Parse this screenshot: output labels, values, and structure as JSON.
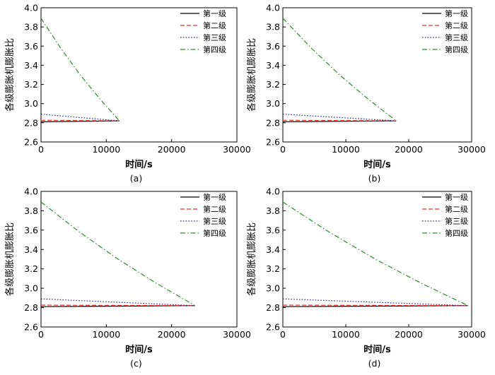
{
  "chart_data": [
    {
      "type": "line",
      "panel_label": "(a)",
      "xlabel": "时间/s",
      "ylabel": "各级膨胀机膨胀比",
      "xlim": [
        0,
        30000
      ],
      "ylim": [
        2.6,
        4.0
      ],
      "xticks": [
        0,
        10000,
        20000,
        30000
      ],
      "yticks": [
        2.6,
        2.8,
        3.0,
        3.2,
        3.4,
        3.6,
        3.8,
        4.0
      ],
      "series": [
        {
          "name": "第一级",
          "style": "solid",
          "color": "#000000",
          "x": [
            0,
            6000,
            12000
          ],
          "y": [
            2.81,
            2.815,
            2.82
          ]
        },
        {
          "name": "第二级",
          "style": "dashed",
          "color": "#e8352a",
          "x": [
            0,
            6000,
            12000
          ],
          "y": [
            2.826,
            2.823,
            2.82
          ]
        },
        {
          "name": "第三级",
          "style": "dotted",
          "color": "#2b2b8c",
          "x": [
            0,
            6000,
            12000
          ],
          "y": [
            2.89,
            2.855,
            2.82
          ]
        },
        {
          "name": "第四级",
          "style": "dashdot",
          "color": "#2e8b2e",
          "x": [
            0,
            3000,
            6000,
            9000,
            12000
          ],
          "y": [
            3.89,
            3.58,
            3.3,
            3.05,
            2.82
          ]
        }
      ]
    },
    {
      "type": "line",
      "panel_label": "(b)",
      "xlabel": "时间/s",
      "ylabel": "各级膨胀机膨胀比",
      "xlim": [
        0,
        30000
      ],
      "ylim": [
        2.6,
        4.0
      ],
      "xticks": [
        0,
        10000,
        20000,
        30000
      ],
      "yticks": [
        2.6,
        2.8,
        3.0,
        3.2,
        3.4,
        3.6,
        3.8,
        4.0
      ],
      "series": [
        {
          "name": "第一级",
          "style": "solid",
          "color": "#000000",
          "x": [
            0,
            9000,
            18000
          ],
          "y": [
            2.81,
            2.815,
            2.82
          ]
        },
        {
          "name": "第二级",
          "style": "dashed",
          "color": "#e8352a",
          "x": [
            0,
            9000,
            18000
          ],
          "y": [
            2.826,
            2.823,
            2.82
          ]
        },
        {
          "name": "第三级",
          "style": "dotted",
          "color": "#2b2b8c",
          "x": [
            0,
            9000,
            18000
          ],
          "y": [
            2.89,
            2.855,
            2.82
          ]
        },
        {
          "name": "第四级",
          "style": "dashdot",
          "color": "#2e8b2e",
          "x": [
            0,
            4500,
            9000,
            13500,
            18000
          ],
          "y": [
            3.89,
            3.58,
            3.3,
            3.05,
            2.82
          ]
        }
      ]
    },
    {
      "type": "line",
      "panel_label": "(c)",
      "xlabel": "时间/s",
      "ylabel": "各级膨胀机膨胀比",
      "xlim": [
        0,
        30000
      ],
      "ylim": [
        2.6,
        4.0
      ],
      "xticks": [
        0,
        10000,
        20000,
        30000
      ],
      "yticks": [
        2.6,
        2.8,
        3.0,
        3.2,
        3.4,
        3.6,
        3.8,
        4.0
      ],
      "series": [
        {
          "name": "第一级",
          "style": "solid",
          "color": "#000000",
          "x": [
            0,
            11800,
            23600
          ],
          "y": [
            2.81,
            2.815,
            2.82
          ]
        },
        {
          "name": "第二级",
          "style": "dashed",
          "color": "#e8352a",
          "x": [
            0,
            11800,
            23600
          ],
          "y": [
            2.826,
            2.823,
            2.82
          ]
        },
        {
          "name": "第三级",
          "style": "dotted",
          "color": "#2b2b8c",
          "x": [
            0,
            11800,
            23600
          ],
          "y": [
            2.89,
            2.855,
            2.82
          ]
        },
        {
          "name": "第四级",
          "style": "dashdot",
          "color": "#2e8b2e",
          "x": [
            0,
            5900,
            11800,
            17700,
            23600
          ],
          "y": [
            3.89,
            3.58,
            3.3,
            3.05,
            2.82
          ]
        }
      ]
    },
    {
      "type": "line",
      "panel_label": "(d)",
      "xlabel": "时间/s",
      "ylabel": "各级膨胀机膨胀比",
      "xlim": [
        0,
        30000
      ],
      "ylim": [
        2.6,
        4.0
      ],
      "xticks": [
        0,
        10000,
        20000,
        30000
      ],
      "yticks": [
        2.6,
        2.8,
        3.0,
        3.2,
        3.4,
        3.6,
        3.8,
        4.0
      ],
      "series": [
        {
          "name": "第一级",
          "style": "solid",
          "color": "#000000",
          "x": [
            0,
            14700,
            29400
          ],
          "y": [
            2.81,
            2.815,
            2.82
          ]
        },
        {
          "name": "第二级",
          "style": "dashed",
          "color": "#e8352a",
          "x": [
            0,
            14700,
            29400
          ],
          "y": [
            2.826,
            2.823,
            2.82
          ]
        },
        {
          "name": "第三级",
          "style": "dotted",
          "color": "#2b2b8c",
          "x": [
            0,
            14700,
            29400
          ],
          "y": [
            2.89,
            2.855,
            2.82
          ]
        },
        {
          "name": "第四级",
          "style": "dashdot",
          "color": "#2e8b2e",
          "x": [
            0,
            7350,
            14700,
            22050,
            29400
          ],
          "y": [
            3.89,
            3.58,
            3.3,
            3.05,
            2.82
          ]
        }
      ]
    }
  ]
}
